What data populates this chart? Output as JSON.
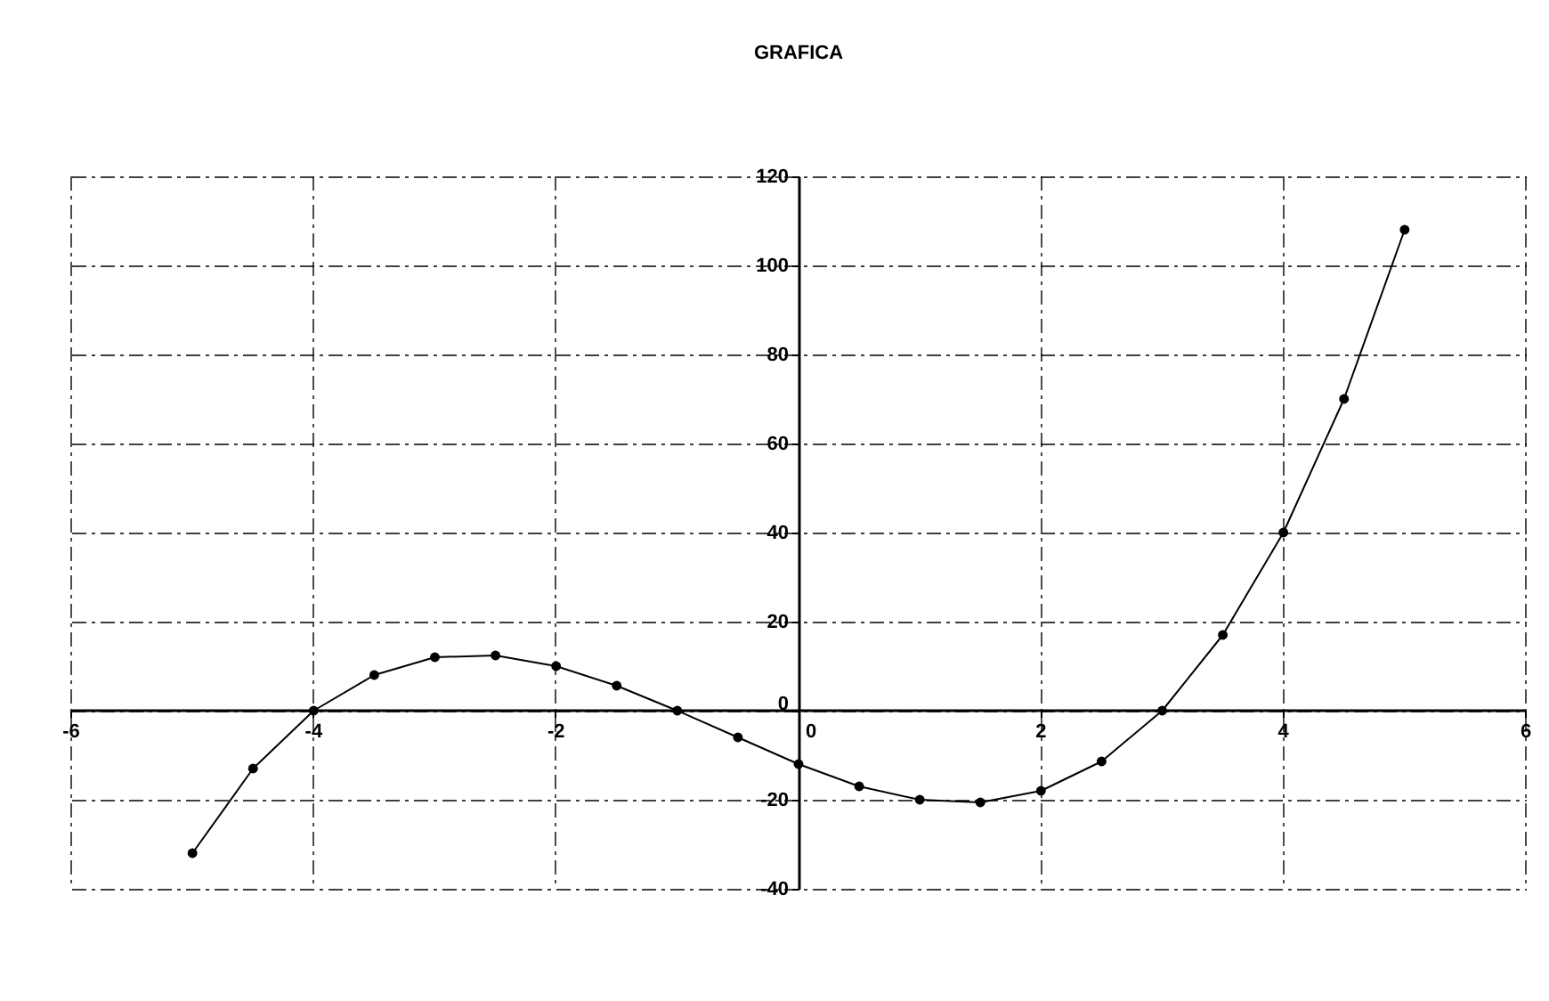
{
  "chart_data": {
    "type": "line",
    "title": "GRAFICA",
    "x": [
      -5,
      -4.5,
      -4,
      -3.5,
      -3,
      -2.5,
      -2,
      -1.5,
      -1,
      -0.5,
      0,
      0.5,
      1,
      1.5,
      2,
      2.5,
      3,
      3.5,
      4,
      4.5,
      5
    ],
    "series": [
      {
        "color": "#000000",
        "values": [
          -32,
          -13,
          0,
          8,
          12,
          12.4,
          10,
          5.6,
          0,
          -6,
          -12,
          -17,
          -20,
          -20.6,
          -18,
          -11.4,
          0,
          17,
          40,
          70,
          108
        ]
      }
    ],
    "xlim": [
      -6,
      6
    ],
    "ylim": [
      -40,
      120
    ],
    "xticks": [
      -6,
      -4,
      -2,
      0,
      2,
      4,
      6
    ],
    "yticks": [
      -40,
      -20,
      0,
      20,
      40,
      60,
      80,
      100,
      120
    ],
    "grid": true,
    "marker": "circle",
    "line_style": "solid"
  }
}
